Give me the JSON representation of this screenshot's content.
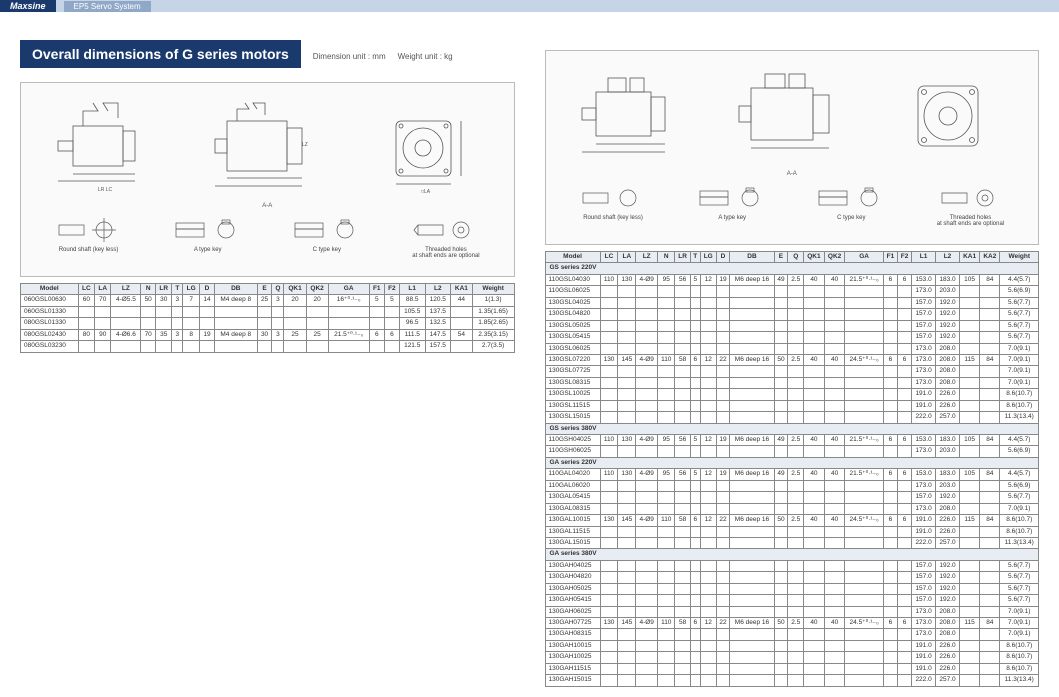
{
  "brand": "Maxsine",
  "subtitle": "EP5 Servo System",
  "page_title": "Overall dimensions of G series motors",
  "dim_unit": "Dimension unit : mm",
  "weight_unit": "Weight unit : kg",
  "key_labels": {
    "round": "Round shaft (key less)",
    "a_type": "A type key",
    "c_type": "C type key",
    "threaded": "Threaded holes\nat shaft ends are optional"
  },
  "aa_label": "A-A",
  "diagram_labels": [
    "Q",
    "QK1",
    "QK2",
    "DB",
    "GA",
    "F2",
    "E",
    "LC",
    "T",
    "LG",
    "LR",
    "LA",
    "LZ",
    "D",
    "KA1",
    "L1",
    "L2"
  ],
  "left_table": {
    "headers": [
      "Model",
      "LC",
      "LA",
      "LZ",
      "N",
      "LR",
      "T",
      "LG",
      "D",
      "DB",
      "E",
      "Q",
      "QK1",
      "QK2",
      "GA",
      "F1",
      "F2",
      "L1",
      "L2",
      "KA1",
      "Weight"
    ],
    "rows": [
      [
        "060GSL00630",
        "60",
        "70",
        "4-Ø5.5",
        "50",
        "30",
        "3",
        "7",
        "14",
        "M4 deep 8",
        "25",
        "3",
        "20",
        "20",
        "16⁺⁰·¹₋₀",
        "5",
        "5",
        "88.5",
        "120.5",
        "44",
        "1(1.3)"
      ],
      [
        "060GSL01330",
        "",
        "",
        "",
        "",
        "",
        "",
        "",
        "",
        "",
        "",
        "",
        "",
        "",
        "",
        "",
        "",
        "105.5",
        "137.5",
        "",
        "1.35(1.65)"
      ],
      [
        "080GSL01330",
        "",
        "",
        "",
        "",
        "",
        "",
        "",
        "",
        "",
        "",
        "",
        "",
        "",
        "",
        "",
        "",
        "96.5",
        "132.5",
        "",
        "1.85(2.65)"
      ],
      [
        "080GSL02430",
        "80",
        "90",
        "4-Ø6.6",
        "70",
        "35",
        "3",
        "8",
        "19",
        "M4 deep 8",
        "30",
        "3",
        "25",
        "25",
        "21.5⁺⁰·¹₋₀",
        "6",
        "6",
        "111.5",
        "147.5",
        "54",
        "2.35(3.15)"
      ],
      [
        "080GSL03230",
        "",
        "",
        "",
        "",
        "",
        "",
        "",
        "",
        "",
        "",
        "",
        "",
        "",
        "",
        "",
        "",
        "121.5",
        "157.5",
        "",
        "2.7(3.5)"
      ]
    ]
  },
  "right_table": {
    "headers": [
      "Model",
      "LC",
      "LA",
      "LZ",
      "N",
      "LR",
      "T",
      "LG",
      "D",
      "DB",
      "E",
      "Q",
      "QK1",
      "QK2",
      "GA",
      "F1",
      "F2",
      "L1",
      "L2",
      "KA1",
      "KA2",
      "Weight"
    ],
    "sections": [
      {
        "label": "GS series 220V",
        "rows": [
          [
            "110GSL04030",
            "110",
            "130",
            "4-Ø9",
            "95",
            "56",
            "5",
            "12",
            "19",
            "M6 deep 16",
            "49",
            "2.5",
            "40",
            "40",
            "21.5⁺⁰·¹₋₀",
            "6",
            "6",
            "153.0",
            "183.0",
            "105",
            "84",
            "4.4(5.7)"
          ],
          [
            "110GSL06025",
            "",
            "",
            "",
            "",
            "",
            "",
            "",
            "",
            "",
            "",
            "",
            "",
            "",
            "",
            "",
            "",
            "173.0",
            "203.0",
            "",
            "",
            "5.6(6.9)"
          ],
          [
            "130GSL04025",
            "",
            "",
            "",
            "",
            "",
            "",
            "",
            "",
            "",
            "",
            "",
            "",
            "",
            "",
            "",
            "",
            "157.0",
            "192.0",
            "",
            "",
            "5.6(7.7)"
          ],
          [
            "130GSL04820",
            "",
            "",
            "",
            "",
            "",
            "",
            "",
            "",
            "",
            "",
            "",
            "",
            "",
            "",
            "",
            "",
            "157.0",
            "192.0",
            "",
            "",
            "5.6(7.7)"
          ],
          [
            "130GSL05025",
            "",
            "",
            "",
            "",
            "",
            "",
            "",
            "",
            "",
            "",
            "",
            "",
            "",
            "",
            "",
            "",
            "157.0",
            "192.0",
            "",
            "",
            "5.6(7.7)"
          ],
          [
            "130GSL05415",
            "",
            "",
            "",
            "",
            "",
            "",
            "",
            "",
            "",
            "",
            "",
            "",
            "",
            "",
            "",
            "",
            "157.0",
            "192.0",
            "",
            "",
            "5.6(7.7)"
          ],
          [
            "130GSL06025",
            "",
            "",
            "",
            "",
            "",
            "",
            "",
            "",
            "",
            "",
            "",
            "",
            "",
            "",
            "",
            "",
            "173.0",
            "208.0",
            "",
            "",
            "7.0(9.1)"
          ],
          [
            "130GSL07220",
            "130",
            "145",
            "4-Ø9",
            "110",
            "58",
            "6",
            "12",
            "22",
            "M6 deep 16",
            "50",
            "2.5",
            "40",
            "40",
            "24.5⁺⁰·¹₋₀",
            "6",
            "6",
            "173.0",
            "208.0",
            "115",
            "84",
            "7.0(9.1)"
          ],
          [
            "130GSL07725",
            "",
            "",
            "",
            "",
            "",
            "",
            "",
            "",
            "",
            "",
            "",
            "",
            "",
            "",
            "",
            "",
            "173.0",
            "208.0",
            "",
            "",
            "7.0(9.1)"
          ],
          [
            "130GSL08315",
            "",
            "",
            "",
            "",
            "",
            "",
            "",
            "",
            "",
            "",
            "",
            "",
            "",
            "",
            "",
            "",
            "173.0",
            "208.0",
            "",
            "",
            "7.0(9.1)"
          ],
          [
            "130GSL10025",
            "",
            "",
            "",
            "",
            "",
            "",
            "",
            "",
            "",
            "",
            "",
            "",
            "",
            "",
            "",
            "",
            "191.0",
            "226.0",
            "",
            "",
            "8.6(10.7)"
          ],
          [
            "130GSL11515",
            "",
            "",
            "",
            "",
            "",
            "",
            "",
            "",
            "",
            "",
            "",
            "",
            "",
            "",
            "",
            "",
            "191.0",
            "226.0",
            "",
            "",
            "8.6(10.7)"
          ],
          [
            "130GSL15015",
            "",
            "",
            "",
            "",
            "",
            "",
            "",
            "",
            "",
            "",
            "",
            "",
            "",
            "",
            "",
            "",
            "222.0",
            "257.0",
            "",
            "",
            "11.3(13.4)"
          ]
        ]
      },
      {
        "label": "GS series 380V",
        "rows": [
          [
            "110GSH04025",
            "110",
            "130",
            "4-Ø9",
            "95",
            "56",
            "5",
            "12",
            "19",
            "M6 deep 16",
            "49",
            "2.5",
            "40",
            "40",
            "21.5⁺⁰·¹₋₀",
            "6",
            "6",
            "153.0",
            "183.0",
            "105",
            "84",
            "4.4(5.7)"
          ],
          [
            "110GSH06025",
            "",
            "",
            "",
            "",
            "",
            "",
            "",
            "",
            "",
            "",
            "",
            "",
            "",
            "",
            "",
            "",
            "173.0",
            "203.0",
            "",
            "",
            "5.6(6.9)"
          ]
        ]
      },
      {
        "label": "GA series 220V",
        "rows": [
          [
            "110GAL04020",
            "110",
            "130",
            "4-Ø9",
            "95",
            "56",
            "5",
            "12",
            "19",
            "M6 deep 16",
            "49",
            "2.5",
            "40",
            "40",
            "21.5⁺⁰·¹₋₀",
            "6",
            "6",
            "153.0",
            "183.0",
            "105",
            "84",
            "4.4(5.7)"
          ],
          [
            "110GAL06020",
            "",
            "",
            "",
            "",
            "",
            "",
            "",
            "",
            "",
            "",
            "",
            "",
            "",
            "",
            "",
            "",
            "173.0",
            "203.0",
            "",
            "",
            "5.6(6.9)"
          ],
          [
            "130GAL05415",
            "",
            "",
            "",
            "",
            "",
            "",
            "",
            "",
            "",
            "",
            "",
            "",
            "",
            "",
            "",
            "",
            "157.0",
            "192.0",
            "",
            "",
            "5.6(7.7)"
          ],
          [
            "130GAL08315",
            "",
            "",
            "",
            "",
            "",
            "",
            "",
            "",
            "",
            "",
            "",
            "",
            "",
            "",
            "",
            "",
            "173.0",
            "208.0",
            "",
            "",
            "7.0(9.1)"
          ],
          [
            "130GAL10015",
            "130",
            "145",
            "4-Ø9",
            "110",
            "58",
            "6",
            "12",
            "22",
            "M6 deep 16",
            "50",
            "2.5",
            "40",
            "40",
            "24.5⁺⁰·¹₋₀",
            "6",
            "6",
            "191.0",
            "226.0",
            "115",
            "84",
            "8.6(10.7)"
          ],
          [
            "130GAL11515",
            "",
            "",
            "",
            "",
            "",
            "",
            "",
            "",
            "",
            "",
            "",
            "",
            "",
            "",
            "",
            "",
            "191.0",
            "226.0",
            "",
            "",
            "8.6(10.7)"
          ],
          [
            "130GAL15015",
            "",
            "",
            "",
            "",
            "",
            "",
            "",
            "",
            "",
            "",
            "",
            "",
            "",
            "",
            "",
            "",
            "222.0",
            "257.0",
            "",
            "",
            "11.3(13.4)"
          ]
        ]
      },
      {
        "label": "GA series 380V",
        "rows": [
          [
            "130GAH04025",
            "",
            "",
            "",
            "",
            "",
            "",
            "",
            "",
            "",
            "",
            "",
            "",
            "",
            "",
            "",
            "",
            "157.0",
            "192.0",
            "",
            "",
            "5.6(7.7)"
          ],
          [
            "130GAH04820",
            "",
            "",
            "",
            "",
            "",
            "",
            "",
            "",
            "",
            "",
            "",
            "",
            "",
            "",
            "",
            "",
            "157.0",
            "192.0",
            "",
            "",
            "5.6(7.7)"
          ],
          [
            "130GAH05025",
            "",
            "",
            "",
            "",
            "",
            "",
            "",
            "",
            "",
            "",
            "",
            "",
            "",
            "",
            "",
            "",
            "157.0",
            "192.0",
            "",
            "",
            "5.6(7.7)"
          ],
          [
            "130GAH05415",
            "",
            "",
            "",
            "",
            "",
            "",
            "",
            "",
            "",
            "",
            "",
            "",
            "",
            "",
            "",
            "",
            "157.0",
            "192.0",
            "",
            "",
            "5.6(7.7)"
          ],
          [
            "130GAH06025",
            "",
            "",
            "",
            "",
            "",
            "",
            "",
            "",
            "",
            "",
            "",
            "",
            "",
            "",
            "",
            "",
            "173.0",
            "208.0",
            "",
            "",
            "7.0(9.1)"
          ],
          [
            "130GAH07725",
            "130",
            "145",
            "4-Ø9",
            "110",
            "58",
            "6",
            "12",
            "22",
            "M6 deep 16",
            "50",
            "2.5",
            "40",
            "40",
            "24.5⁺⁰·¹₋₀",
            "6",
            "6",
            "173.0",
            "208.0",
            "115",
            "84",
            "7.0(9.1)"
          ],
          [
            "130GAH08315",
            "",
            "",
            "",
            "",
            "",
            "",
            "",
            "",
            "",
            "",
            "",
            "",
            "",
            "",
            "",
            "",
            "173.0",
            "208.0",
            "",
            "",
            "7.0(9.1)"
          ],
          [
            "130GAH10015",
            "",
            "",
            "",
            "",
            "",
            "",
            "",
            "",
            "",
            "",
            "",
            "",
            "",
            "",
            "",
            "",
            "191.0",
            "226.0",
            "",
            "",
            "8.6(10.7)"
          ],
          [
            "130GAH10025",
            "",
            "",
            "",
            "",
            "",
            "",
            "",
            "",
            "",
            "",
            "",
            "",
            "",
            "",
            "",
            "",
            "191.0",
            "226.0",
            "",
            "",
            "8.6(10.7)"
          ],
          [
            "130GAH11515",
            "",
            "",
            "",
            "",
            "",
            "",
            "",
            "",
            "",
            "",
            "",
            "",
            "",
            "",
            "",
            "",
            "191.0",
            "226.0",
            "",
            "",
            "8.6(10.7)"
          ],
          [
            "130GAH15015",
            "",
            "",
            "",
            "",
            "",
            "",
            "",
            "",
            "",
            "",
            "",
            "",
            "",
            "",
            "",
            "",
            "222.0",
            "257.0",
            "",
            "",
            "11.3(13.4)"
          ]
        ]
      }
    ]
  },
  "colors": {
    "header_bg": "#1a3a6e",
    "topbar": "#c5d4e6",
    "table_header": "#e8ecf3"
  }
}
